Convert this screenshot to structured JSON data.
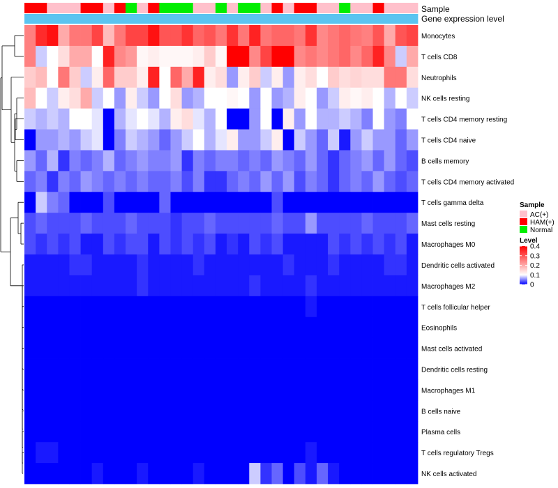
{
  "chart_data": {
    "type": "heatmap",
    "title": "",
    "annotation_rows": [
      {
        "label": "Sample"
      },
      {
        "label": "Gene expression level"
      }
    ],
    "gene_expression_color": "#5bc4f0",
    "rows": [
      "Monocytes",
      "T cells CD8",
      "Neutrophils",
      "NK cells resting",
      "T cells CD4 memory resting",
      "T cells CD4 naive",
      "B cells memory",
      "T cells CD4 memory activated",
      "T cells gamma delta",
      "Mast cells resting",
      "Macrophages M0",
      "Dendritic cells activated",
      "Macrophages M2",
      "T cells follicular helper",
      "Eosinophils",
      "Mast cells activated",
      "Dendritic cells resting",
      "Macrophages M1",
      "B cells naive",
      "Plasma cells",
      "T cells regulatory  Tregs",
      "NK cells activated"
    ],
    "sample_groups": [
      "HAM",
      "HAM",
      "AC",
      "AC",
      "AC",
      "HAM",
      "HAM",
      "AC",
      "HAM",
      "N",
      "AC",
      "HAM",
      "N",
      "N",
      "N",
      "AC",
      "AC",
      "N",
      "AC",
      "N",
      "N",
      "AC",
      "HAM",
      "AC",
      "HAM",
      "HAM",
      "AC",
      "AC",
      "N",
      "AC",
      "AC",
      "HAM",
      "AC",
      "AC",
      "AC"
    ],
    "values": [
      [
        0.25,
        0.35,
        0.38,
        0.2,
        0.26,
        0.26,
        0.32,
        0.18,
        0.26,
        0.32,
        0.32,
        0.38,
        0.3,
        0.3,
        0.34,
        0.28,
        0.3,
        0.26,
        0.34,
        0.26,
        0.36,
        0.26,
        0.28,
        0.28,
        0.26,
        0.34,
        0.24,
        0.26,
        0.28,
        0.26,
        0.25,
        0.3,
        0.2,
        0.3,
        0.32
      ],
      [
        0.25,
        0.08,
        0.1,
        0.14,
        0.2,
        0.2,
        0.1,
        0.36,
        0.24,
        0.22,
        0.11,
        0.12,
        0.11,
        0.11,
        0.11,
        0.12,
        0.16,
        0.11,
        0.4,
        0.4,
        0.24,
        0.32,
        0.4,
        0.4,
        0.24,
        0.26,
        0.24,
        0.26,
        0.28,
        0.24,
        0.28,
        0.36,
        0.24,
        0.08,
        0.2
      ],
      [
        0.16,
        0.18,
        0.1,
        0.26,
        0.16,
        0.08,
        0.12,
        0.28,
        0.16,
        0.16,
        0.12,
        0.36,
        0.1,
        0.28,
        0.2,
        0.36,
        0.12,
        0.14,
        0.06,
        0.12,
        0.16,
        0.08,
        0.12,
        0.06,
        0.12,
        0.14,
        0.1,
        0.16,
        0.14,
        0.15,
        0.14,
        0.14,
        0.26,
        0.26,
        0.14
      ],
      [
        0.18,
        0.1,
        0.08,
        0.12,
        0.14,
        0.2,
        0.08,
        0.1,
        0.06,
        0.12,
        0.08,
        0.06,
        0.1,
        0.14,
        0.06,
        0.07,
        0.1,
        0.1,
        0.11,
        0.1,
        0.06,
        0.1,
        0.06,
        0.07,
        0.12,
        0.1,
        0.06,
        0.08,
        0.12,
        0.11,
        0.12,
        0.1,
        0.07,
        0.1,
        0.08
      ],
      [
        0.08,
        0.07,
        0.08,
        0.07,
        0.1,
        0.1,
        0.09,
        0.0,
        0.07,
        0.09,
        0.1,
        0.09,
        0.07,
        0.12,
        0.14,
        0.09,
        0.07,
        0.1,
        0.0,
        0.0,
        0.06,
        0.1,
        0.0,
        0.12,
        0.06,
        0.1,
        0.07,
        0.07,
        0.08,
        0.07,
        0.05,
        0.1,
        0.06,
        0.05,
        0.1
      ],
      [
        0.0,
        0.06,
        0.06,
        0.07,
        0.06,
        0.08,
        0.09,
        0.0,
        0.05,
        0.08,
        0.07,
        0.06,
        0.04,
        0.06,
        0.08,
        0.1,
        0.07,
        0.09,
        0.12,
        0.06,
        0.06,
        0.08,
        0.12,
        0.0,
        0.08,
        0.06,
        0.04,
        0.08,
        0.01,
        0.06,
        0.08,
        0.06,
        0.06,
        0.04,
        0.06
      ],
      [
        0.06,
        0.04,
        0.07,
        0.02,
        0.05,
        0.04,
        0.05,
        0.07,
        0.04,
        0.05,
        0.06,
        0.05,
        0.05,
        0.06,
        0.02,
        0.05,
        0.04,
        0.05,
        0.05,
        0.04,
        0.05,
        0.04,
        0.06,
        0.05,
        0.04,
        0.06,
        0.04,
        0.02,
        0.04,
        0.05,
        0.06,
        0.04,
        0.06,
        0.04,
        0.03
      ],
      [
        0.04,
        0.05,
        0.02,
        0.05,
        0.04,
        0.06,
        0.05,
        0.04,
        0.05,
        0.04,
        0.05,
        0.04,
        0.04,
        0.05,
        0.03,
        0.05,
        0.02,
        0.02,
        0.04,
        0.05,
        0.04,
        0.06,
        0.04,
        0.06,
        0.03,
        0.05,
        0.04,
        0.02,
        0.04,
        0.05,
        0.04,
        0.06,
        0.04,
        0.03,
        0.04
      ],
      [
        0.0,
        0.08,
        0.05,
        0.04,
        0.0,
        0.0,
        0.0,
        0.03,
        0.0,
        0.0,
        0.0,
        0.0,
        0.04,
        0.0,
        0.0,
        0.0,
        0.0,
        0.0,
        0.0,
        0.0,
        0.0,
        0.0,
        0.03,
        0.0,
        0.0,
        0.0,
        0.0,
        0.0,
        0.0,
        0.0,
        0.0,
        0.0,
        0.0,
        0.0,
        0.0
      ],
      [
        0.03,
        0.04,
        0.03,
        0.03,
        0.03,
        0.04,
        0.03,
        0.03,
        0.03,
        0.04,
        0.03,
        0.03,
        0.03,
        0.02,
        0.03,
        0.03,
        0.04,
        0.03,
        0.03,
        0.03,
        0.03,
        0.03,
        0.04,
        0.03,
        0.03,
        0.06,
        0.03,
        0.03,
        0.03,
        0.03,
        0.04,
        0.03,
        0.03,
        0.03,
        0.04
      ],
      [
        0.03,
        0.02,
        0.03,
        0.02,
        0.03,
        0.01,
        0.01,
        0.03,
        0.02,
        0.03,
        0.03,
        0.01,
        0.03,
        0.02,
        0.03,
        0.02,
        0.03,
        0.01,
        0.02,
        0.01,
        0.03,
        0.02,
        0.03,
        0.01,
        0.01,
        0.01,
        0.01,
        0.03,
        0.02,
        0.03,
        0.02,
        0.03,
        0.02,
        0.03,
        0.01
      ],
      [
        0.01,
        0.01,
        0.01,
        0.01,
        0.02,
        0.02,
        0.01,
        0.01,
        0.01,
        0.01,
        0.02,
        0.01,
        0.01,
        0.01,
        0.01,
        0.02,
        0.01,
        0.01,
        0.01,
        0.01,
        0.01,
        0.01,
        0.01,
        0.02,
        0.01,
        0.01,
        0.01,
        0.02,
        0.01,
        0.01,
        0.01,
        0.01,
        0.02,
        0.02,
        0.01
      ],
      [
        0.01,
        0.01,
        0.01,
        0.01,
        0.01,
        0.01,
        0.01,
        0.01,
        0.01,
        0.01,
        0.02,
        0.01,
        0.01,
        0.01,
        0.01,
        0.01,
        0.01,
        0.01,
        0.01,
        0.01,
        0.02,
        0.01,
        0.01,
        0.01,
        0.01,
        0.02,
        0.01,
        0.01,
        0.01,
        0.01,
        0.01,
        0.01,
        0.01,
        0.01,
        0.01
      ],
      [
        0.0,
        0.0,
        0.0,
        0.0,
        0.0,
        0.0,
        0.0,
        0.0,
        0.0,
        0.0,
        0.0,
        0.0,
        0.0,
        0.0,
        0.0,
        0.0,
        0.0,
        0.0,
        0.0,
        0.0,
        0.0,
        0.0,
        0.0,
        0.0,
        0.0,
        0.01,
        0.0,
        0.0,
        0.0,
        0.0,
        0.0,
        0.0,
        0.0,
        0.0,
        0.0
      ],
      [
        0.0,
        0.0,
        0.0,
        0.0,
        0.0,
        0.0,
        0.0,
        0.0,
        0.0,
        0.0,
        0.0,
        0.0,
        0.0,
        0.0,
        0.0,
        0.0,
        0.0,
        0.0,
        0.0,
        0.0,
        0.0,
        0.0,
        0.0,
        0.0,
        0.0,
        0.0,
        0.0,
        0.0,
        0.0,
        0.0,
        0.0,
        0.0,
        0.0,
        0.0,
        0.0
      ],
      [
        0.0,
        0.0,
        0.0,
        0.0,
        0.0,
        0.0,
        0.0,
        0.0,
        0.0,
        0.0,
        0.0,
        0.0,
        0.0,
        0.0,
        0.0,
        0.0,
        0.0,
        0.0,
        0.0,
        0.0,
        0.0,
        0.0,
        0.0,
        0.0,
        0.0,
        0.0,
        0.0,
        0.0,
        0.0,
        0.0,
        0.0,
        0.0,
        0.0,
        0.0,
        0.0
      ],
      [
        0.0,
        0.0,
        0.0,
        0.0,
        0.0,
        0.0,
        0.0,
        0.0,
        0.0,
        0.0,
        0.0,
        0.0,
        0.0,
        0.0,
        0.0,
        0.0,
        0.0,
        0.0,
        0.0,
        0.0,
        0.0,
        0.0,
        0.0,
        0.0,
        0.0,
        0.0,
        0.0,
        0.0,
        0.0,
        0.0,
        0.0,
        0.0,
        0.0,
        0.0,
        0.0
      ],
      [
        0.0,
        0.0,
        0.0,
        0.0,
        0.0,
        0.0,
        0.0,
        0.0,
        0.0,
        0.0,
        0.0,
        0.0,
        0.0,
        0.0,
        0.0,
        0.0,
        0.0,
        0.0,
        0.0,
        0.0,
        0.0,
        0.0,
        0.0,
        0.0,
        0.0,
        0.0,
        0.0,
        0.0,
        0.0,
        0.0,
        0.0,
        0.0,
        0.0,
        0.0,
        0.0
      ],
      [
        0.0,
        0.0,
        0.0,
        0.0,
        0.0,
        0.0,
        0.0,
        0.0,
        0.0,
        0.0,
        0.0,
        0.0,
        0.0,
        0.0,
        0.0,
        0.0,
        0.0,
        0.0,
        0.0,
        0.0,
        0.0,
        0.0,
        0.0,
        0.0,
        0.0,
        0.0,
        0.0,
        0.0,
        0.0,
        0.0,
        0.0,
        0.0,
        0.0,
        0.0,
        0.0
      ],
      [
        0.0,
        0.0,
        0.0,
        0.0,
        0.0,
        0.0,
        0.0,
        0.0,
        0.0,
        0.0,
        0.0,
        0.0,
        0.0,
        0.0,
        0.0,
        0.0,
        0.0,
        0.0,
        0.0,
        0.0,
        0.0,
        0.0,
        0.0,
        0.0,
        0.0,
        0.0,
        0.0,
        0.0,
        0.0,
        0.0,
        0.0,
        0.0,
        0.0,
        0.0,
        0.0
      ],
      [
        0.0,
        0.01,
        0.01,
        0.0,
        0.0,
        0.0,
        0.0,
        0.0,
        0.0,
        0.0,
        0.0,
        0.0,
        0.0,
        0.0,
        0.0,
        0.0,
        0.0,
        0.0,
        0.0,
        0.0,
        0.0,
        0.0,
        0.0,
        0.0,
        0.0,
        0.01,
        0.0,
        0.0,
        0.0,
        0.0,
        0.0,
        0.0,
        0.0,
        0.0,
        0.0
      ],
      [
        0.0,
        0.0,
        0.0,
        0.0,
        0.0,
        0.0,
        0.01,
        0.0,
        0.0,
        0.0,
        0.01,
        0.0,
        0.0,
        0.0,
        0.0,
        0.01,
        0.0,
        0.0,
        0.0,
        0.0,
        0.08,
        0.02,
        0.04,
        0.0,
        0.03,
        0.01,
        0.04,
        0.01,
        0.0,
        0.0,
        0.0,
        0.0,
        0.0,
        0.0,
        0.0
      ]
    ],
    "color_scale": {
      "min": 0,
      "mid": 0.1,
      "max": 0.4,
      "low": "#0000ff",
      "midcolor": "#ffffff",
      "high": "#ff0000"
    },
    "legend": {
      "sample_title": "Sample",
      "groups": [
        {
          "key": "AC",
          "label": "AC(+)",
          "color": "#ffc0cb"
        },
        {
          "key": "HAM",
          "label": "HAM(+)",
          "color": "#ff0000"
        },
        {
          "key": "N",
          "label": "Normal",
          "color": "#00ee00"
        }
      ],
      "level_title": "Level",
      "ticks": [
        0.4,
        0.3,
        0.2,
        0.1,
        0
      ],
      "tick_labels": [
        "0.4",
        "0.3",
        "0.2",
        "0.1",
        "0"
      ]
    }
  }
}
